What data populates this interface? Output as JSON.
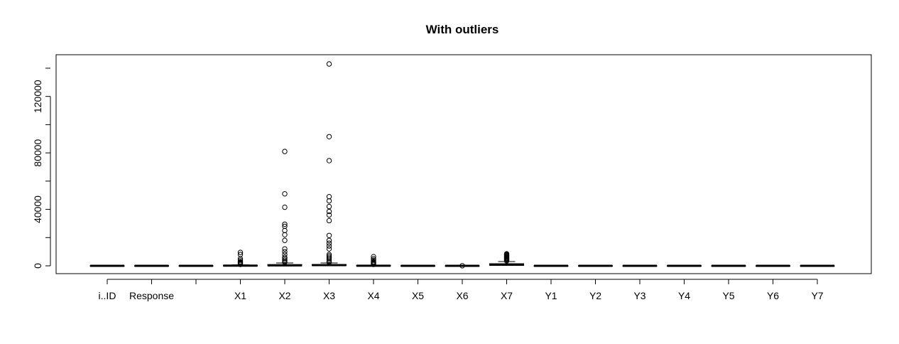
{
  "chart_data": {
    "type": "boxplot",
    "title": "With outliers",
    "xlabel": "",
    "ylabel": "",
    "ylim": [
      -3000,
      145000
    ],
    "y_ticks": [
      0,
      40000,
      80000,
      120000
    ],
    "y_tick_labels": [
      "0",
      "40000",
      "80000",
      "120000"
    ],
    "grid": false,
    "categories": [
      "i..ID",
      "Response",
      "",
      "X1",
      "X2",
      "X3",
      "X4",
      "X5",
      "X6",
      "X7",
      "Y1",
      "Y2",
      "Y3",
      "Y4",
      "Y5",
      "Y6",
      "Y7"
    ],
    "boxes": [
      {
        "name": "i..ID",
        "q1": 0,
        "median": 0,
        "q3": 0,
        "whisker_low": 0,
        "whisker_high": 0,
        "outliers": []
      },
      {
        "name": "Response",
        "q1": 0,
        "median": 0,
        "q3": 0,
        "whisker_low": 0,
        "whisker_high": 0,
        "outliers": []
      },
      {
        "name": "",
        "q1": 0,
        "median": 0,
        "q3": 0,
        "whisker_low": 0,
        "whisker_high": 0,
        "outliers": []
      },
      {
        "name": "X1",
        "q1": 0,
        "median": 100,
        "q3": 300,
        "whisker_low": 0,
        "whisker_high": 700,
        "outliers": [
          1000,
          1500,
          2000,
          2500,
          3000,
          4000,
          5000,
          8000,
          9500
        ]
      },
      {
        "name": "X2",
        "q1": 100,
        "median": 300,
        "q3": 900,
        "whisker_low": 0,
        "whisker_high": 2000,
        "outliers": [
          2500,
          3000,
          4000,
          5000,
          6000,
          8000,
          10000,
          12000,
          18000,
          22000,
          25000,
          28000,
          29500,
          41500,
          51000,
          81000
        ]
      },
      {
        "name": "X3",
        "q1": 200,
        "median": 500,
        "q3": 1000,
        "whisker_low": 0,
        "whisker_high": 2000,
        "outliers": [
          2500,
          3000,
          4000,
          5000,
          6000,
          7000,
          8000,
          12000,
          14000,
          16000,
          18000,
          21500,
          32000,
          36000,
          38500,
          42000,
          46000,
          49000,
          74500,
          91500,
          143000
        ]
      },
      {
        "name": "X4",
        "q1": 0,
        "median": 50,
        "q3": 200,
        "whisker_low": 0,
        "whisker_high": 500,
        "outliers": [
          1000,
          1500,
          2000,
          2500,
          3000,
          4000,
          5000,
          6500
        ]
      },
      {
        "name": "X5",
        "q1": 0,
        "median": 0,
        "q3": 0,
        "whisker_low": 0,
        "whisker_high": 0,
        "outliers": []
      },
      {
        "name": "X6",
        "q1": 0,
        "median": 0,
        "q3": 0,
        "whisker_low": 0,
        "whisker_high": 0,
        "outliers": [
          50
        ]
      },
      {
        "name": "X7",
        "q1": 300,
        "median": 800,
        "q3": 1500,
        "whisker_low": 0,
        "whisker_high": 3000,
        "outliers": [
          3500,
          4000,
          4500,
          5000,
          5500,
          6000,
          6500,
          7000,
          7500,
          8000,
          8500
        ]
      },
      {
        "name": "Y1",
        "q1": 0,
        "median": 0,
        "q3": 0,
        "whisker_low": 0,
        "whisker_high": 0,
        "outliers": []
      },
      {
        "name": "Y2",
        "q1": 0,
        "median": 0,
        "q3": 0,
        "whisker_low": 0,
        "whisker_high": 0,
        "outliers": []
      },
      {
        "name": "Y3",
        "q1": 0,
        "median": 0,
        "q3": 0,
        "whisker_low": 0,
        "whisker_high": 0,
        "outliers": []
      },
      {
        "name": "Y4",
        "q1": 0,
        "median": 0,
        "q3": 0,
        "whisker_low": 0,
        "whisker_high": 0,
        "outliers": []
      },
      {
        "name": "Y5",
        "q1": 0,
        "median": 0,
        "q3": 0,
        "whisker_low": 0,
        "whisker_high": 0,
        "outliers": []
      },
      {
        "name": "Y6",
        "q1": 0,
        "median": 0,
        "q3": 0,
        "whisker_low": 0,
        "whisker_high": 0,
        "outliers": []
      },
      {
        "name": "Y7",
        "q1": 0,
        "median": 0,
        "q3": 0,
        "whisker_low": 0,
        "whisker_high": 0,
        "outliers": []
      }
    ]
  }
}
